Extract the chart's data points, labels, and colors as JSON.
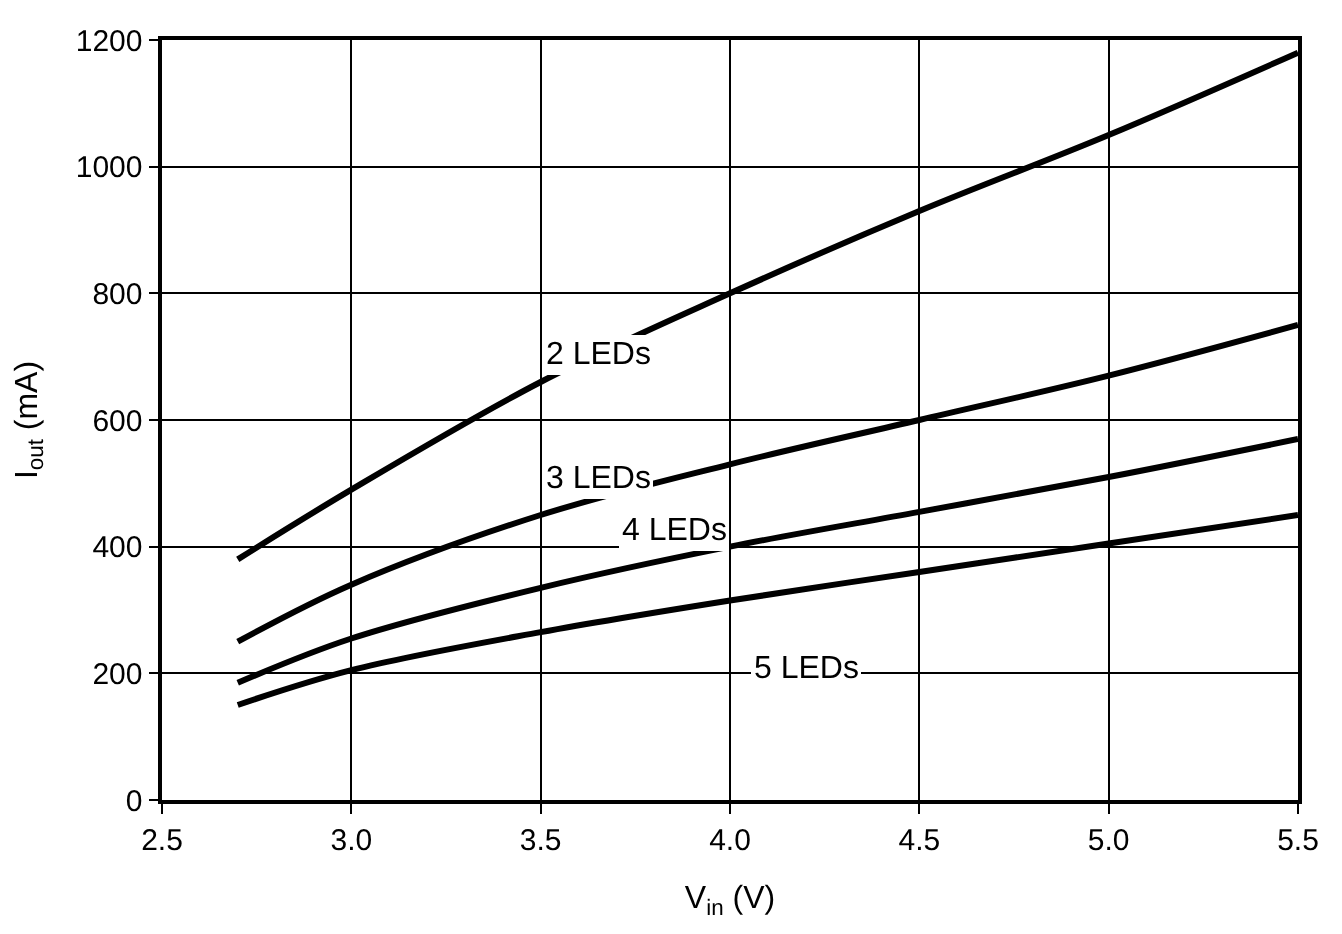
{
  "chart_data": {
    "type": "line",
    "xlabel": "V$_{in}$ (V)",
    "ylabel": "I$_{out}$ (mA)",
    "x": [
      2.7,
      3.0,
      3.5,
      4.0,
      4.5,
      5.0,
      5.5
    ],
    "series": [
      {
        "name": "2 LEDs",
        "color": "#000000",
        "values": [
          380,
          490,
          660,
          800,
          930,
          1050,
          1180
        ]
      },
      {
        "name": "3 LEDs",
        "color": "#000000",
        "values": [
          250,
          340,
          450,
          530,
          600,
          670,
          750
        ]
      },
      {
        "name": "4 LEDs",
        "color": "#000000",
        "values": [
          185,
          255,
          335,
          400,
          455,
          510,
          570
        ]
      },
      {
        "name": "5 LEDs",
        "color": "#000000",
        "values": [
          150,
          205,
          265,
          315,
          360,
          405,
          450
        ]
      }
    ],
    "xlim": [
      2.5,
      5.5
    ],
    "xticks": [
      {
        "value": 2.5,
        "label": "2.5"
      },
      {
        "value": 3.0,
        "label": "3.0"
      },
      {
        "value": 3.5,
        "label": "3.5"
      },
      {
        "value": 4.0,
        "label": "4.0"
      },
      {
        "value": 4.5,
        "label": "4.5"
      },
      {
        "value": 5.0,
        "label": "5.0"
      },
      {
        "value": 5.5,
        "label": "5.5"
      }
    ],
    "ylim": [
      0,
      1200
    ],
    "yticks": [
      0,
      200,
      400,
      600,
      800,
      1000,
      1200
    ],
    "grid": true,
    "legend": false,
    "marker": "none",
    "line_style": "solid"
  }
}
